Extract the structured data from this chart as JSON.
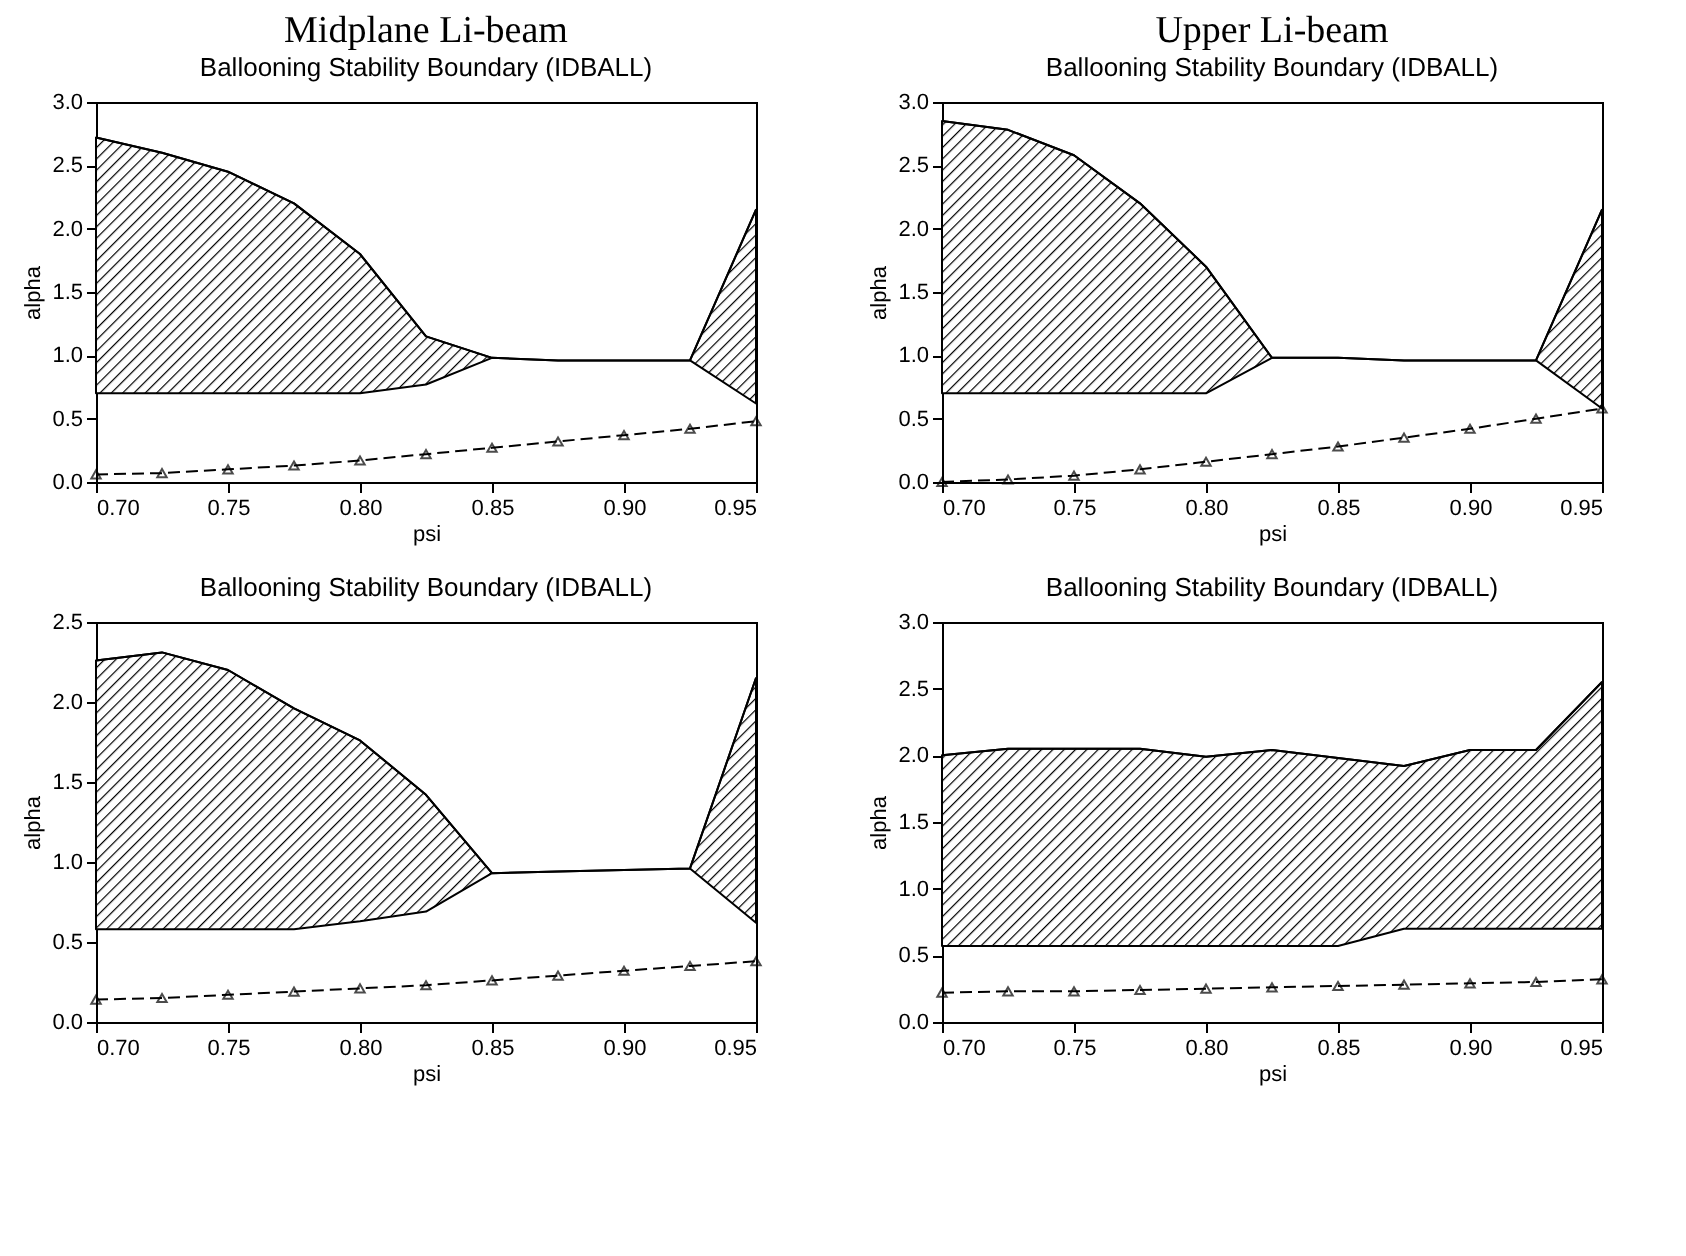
{
  "chart_data": [
    {
      "type": "line",
      "title": "Midplane Li-beam",
      "subtitle": "Ballooning Stability Boundary (IDBALL)",
      "xlabel": "psi",
      "ylabel": "alpha",
      "x": [
        0.7,
        0.725,
        0.75,
        0.775,
        0.8,
        0.825,
        0.85,
        0.875,
        0.9,
        0.925,
        0.95
      ],
      "series": [
        {
          "color": "#000000",
          "values": [
            2.72,
            2.6,
            2.45,
            2.2,
            1.8,
            1.15,
            0.98,
            0.96,
            0.96,
            0.96,
            2.15
          ],
          "upper": [
            2.72,
            2.6,
            2.45,
            2.2,
            1.8,
            1.15,
            0.98,
            0.96,
            0.96,
            0.96,
            2.15
          ],
          "lower": [
            0.7,
            0.7,
            0.7,
            0.7,
            0.7,
            0.77,
            0.98,
            0.96,
            0.96,
            0.96,
            0.62
          ]
        },
        {
          "color": "#000000",
          "marker": "triangle",
          "line_style": "dashed",
          "values": [
            0.06,
            0.07,
            0.1,
            0.13,
            0.17,
            0.22,
            0.27,
            0.32,
            0.37,
            0.42,
            0.48
          ]
        }
      ],
      "xlim": [
        0.7,
        0.95
      ],
      "ylim": [
        0,
        3
      ],
      "xticks": [
        {
          "value": 0.7,
          "label": "0.70"
        },
        {
          "value": 0.75,
          "label": "0.75"
        },
        {
          "value": 0.8,
          "label": "0.80"
        },
        {
          "value": 0.85,
          "label": "0.85"
        },
        {
          "value": 0.9,
          "label": "0.90"
        },
        {
          "value": 0.95,
          "label": "0.95"
        }
      ],
      "yticks": [
        {
          "value": 0,
          "label": "0.0"
        },
        {
          "value": 0.5,
          "label": "0.5"
        },
        {
          "value": 1,
          "label": "1.0"
        },
        {
          "value": 1.5,
          "label": "1.5"
        },
        {
          "value": 2,
          "label": "2.0"
        },
        {
          "value": 2.5,
          "label": "2.5"
        },
        {
          "value": 3,
          "label": "3.0"
        }
      ]
    },
    {
      "type": "line",
      "title": "Upper Li-beam",
      "subtitle": "Ballooning Stability Boundary (IDBALL)",
      "xlabel": "psi",
      "ylabel": "alpha",
      "x": [
        0.7,
        0.725,
        0.75,
        0.775,
        0.8,
        0.825,
        0.85,
        0.875,
        0.9,
        0.925,
        0.95
      ],
      "series": [
        {
          "color": "#000000",
          "values": [
            2.85,
            2.78,
            2.58,
            2.2,
            1.7,
            0.98,
            0.98,
            0.96,
            0.96,
            0.96,
            2.15
          ],
          "upper": [
            2.85,
            2.78,
            2.58,
            2.2,
            1.7,
            0.98,
            0.98,
            0.96,
            0.96,
            0.96,
            2.15
          ],
          "lower": [
            0.7,
            0.7,
            0.7,
            0.7,
            0.7,
            0.98,
            0.98,
            0.96,
            0.96,
            0.96,
            0.58
          ]
        },
        {
          "color": "#000000",
          "marker": "triangle",
          "line_style": "dashed",
          "values": [
            0.0,
            0.02,
            0.05,
            0.1,
            0.16,
            0.22,
            0.28,
            0.35,
            0.42,
            0.5,
            0.58
          ]
        }
      ],
      "xlim": [
        0.7,
        0.95
      ],
      "ylim": [
        0,
        3
      ],
      "xticks": [
        {
          "value": 0.7,
          "label": "0.70"
        },
        {
          "value": 0.75,
          "label": "0.75"
        },
        {
          "value": 0.8,
          "label": "0.80"
        },
        {
          "value": 0.85,
          "label": "0.85"
        },
        {
          "value": 0.9,
          "label": "0.90"
        },
        {
          "value": 0.95,
          "label": "0.95"
        }
      ],
      "yticks": [
        {
          "value": 0,
          "label": "0.0"
        },
        {
          "value": 0.5,
          "label": "0.5"
        },
        {
          "value": 1,
          "label": "1.0"
        },
        {
          "value": 1.5,
          "label": "1.5"
        },
        {
          "value": 2,
          "label": "2.0"
        },
        {
          "value": 2.5,
          "label": "2.5"
        },
        {
          "value": 3,
          "label": "3.0"
        }
      ]
    },
    {
      "type": "line",
      "title": "Ballooning Stability Boundary (IDBALL)",
      "xlabel": "psi",
      "ylabel": "alpha",
      "x": [
        0.7,
        0.725,
        0.75,
        0.775,
        0.8,
        0.825,
        0.85,
        0.875,
        0.9,
        0.925,
        0.95
      ],
      "series": [
        {
          "color": "#000000",
          "values": [
            2.26,
            2.31,
            2.2,
            1.96,
            1.76,
            1.42,
            0.93,
            0.94,
            0.95,
            0.96,
            2.15
          ],
          "upper": [
            2.26,
            2.31,
            2.2,
            1.96,
            1.76,
            1.42,
            0.93,
            0.94,
            0.95,
            0.96,
            2.15
          ],
          "lower": [
            0.58,
            0.58,
            0.58,
            0.58,
            0.63,
            0.69,
            0.93,
            0.94,
            0.95,
            0.96,
            0.62
          ]
        },
        {
          "color": "#000000",
          "marker": "triangle",
          "line_style": "dashed",
          "values": [
            0.14,
            0.15,
            0.17,
            0.19,
            0.21,
            0.23,
            0.26,
            0.29,
            0.32,
            0.35,
            0.38
          ]
        }
      ],
      "xlim": [
        0.7,
        0.95
      ],
      "ylim": [
        0,
        2.5
      ],
      "xticks": [
        {
          "value": 0.7,
          "label": "0.70"
        },
        {
          "value": 0.75,
          "label": "0.75"
        },
        {
          "value": 0.8,
          "label": "0.80"
        },
        {
          "value": 0.85,
          "label": "0.85"
        },
        {
          "value": 0.9,
          "label": "0.90"
        },
        {
          "value": 0.95,
          "label": "0.95"
        }
      ],
      "yticks": [
        {
          "value": 0,
          "label": "0.0"
        },
        {
          "value": 0.5,
          "label": "0.5"
        },
        {
          "value": 1,
          "label": "1.0"
        },
        {
          "value": 1.5,
          "label": "1.5"
        },
        {
          "value": 2,
          "label": "2.0"
        },
        {
          "value": 2.5,
          "label": "2.5"
        }
      ]
    },
    {
      "type": "line",
      "title": "Ballooning Stability Boundary (IDBALL)",
      "xlabel": "psi",
      "ylabel": "alpha",
      "x": [
        0.7,
        0.725,
        0.75,
        0.775,
        0.8,
        0.825,
        0.85,
        0.875,
        0.9,
        0.925,
        0.95
      ],
      "series": [
        {
          "color": "#000000",
          "values": [
            2.0,
            2.05,
            2.05,
            2.05,
            1.99,
            2.04,
            1.98,
            1.92,
            2.04,
            2.04,
            2.55
          ],
          "upper": [
            2.0,
            2.05,
            2.05,
            2.05,
            1.99,
            2.04,
            1.98,
            1.92,
            2.04,
            2.04,
            2.55
          ],
          "lower": [
            0.57,
            0.57,
            0.57,
            0.57,
            0.57,
            0.57,
            0.57,
            0.7,
            0.7,
            0.7,
            0.7
          ]
        },
        {
          "color": "#000000",
          "marker": "triangle",
          "line_style": "dashed",
          "values": [
            0.22,
            0.23,
            0.23,
            0.24,
            0.25,
            0.26,
            0.27,
            0.28,
            0.29,
            0.3,
            0.32
          ]
        }
      ],
      "xlim": [
        0.7,
        0.95
      ],
      "ylim": [
        0,
        3
      ],
      "xticks": [
        {
          "value": 0.7,
          "label": "0.70"
        },
        {
          "value": 0.75,
          "label": "0.75"
        },
        {
          "value": 0.8,
          "label": "0.80"
        },
        {
          "value": 0.85,
          "label": "0.85"
        },
        {
          "value": 0.9,
          "label": "0.90"
        },
        {
          "value": 0.95,
          "label": "0.95"
        }
      ],
      "yticks": [
        {
          "value": 0,
          "label": "0.0"
        },
        {
          "value": 0.5,
          "label": "0.5"
        },
        {
          "value": 1,
          "label": "1.0"
        },
        {
          "value": 1.5,
          "label": "1.5"
        },
        {
          "value": 2,
          "label": "2.0"
        },
        {
          "value": 2.5,
          "label": "2.5"
        },
        {
          "value": 3,
          "label": "3.0"
        }
      ]
    }
  ]
}
